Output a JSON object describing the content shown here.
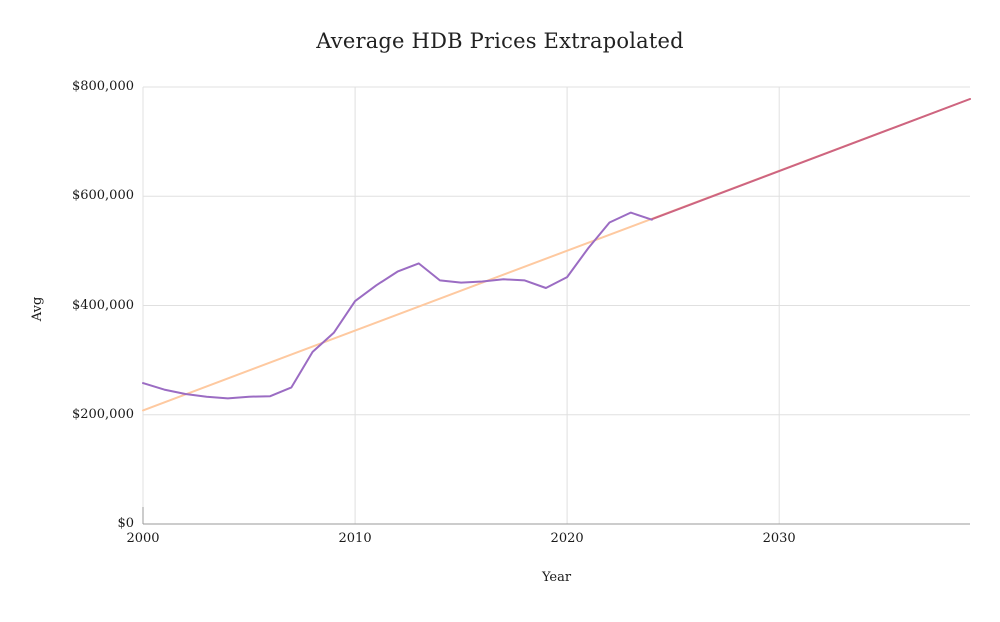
{
  "chart_data": {
    "type": "line",
    "title": "Average HDB Prices Extrapolated",
    "xlabel": "Year",
    "ylabel": "Avg",
    "xlim": [
      2000,
      2039
    ],
    "ylim": [
      0,
      800000
    ],
    "grid": true,
    "legend": "none",
    "style": {
      "grid_color": "#e0e0e0",
      "axis_color": "#999999",
      "background": "#ffffff",
      "actual_color": "#9b6cc3",
      "trend_color": "#fec9a0",
      "extrapolated_color": "#cd6482"
    },
    "x_ticks": [
      {
        "value": 2000,
        "label": "2000"
      },
      {
        "value": 2010,
        "label": "2010"
      },
      {
        "value": 2020,
        "label": "2020"
      },
      {
        "value": 2030,
        "label": "2030"
      }
    ],
    "y_ticks": [
      {
        "value": 0,
        "label": "$0"
      },
      {
        "value": 200000,
        "label": "$200,000"
      },
      {
        "value": 400000,
        "label": "$400,000"
      },
      {
        "value": 600000,
        "label": "$600,000"
      },
      {
        "value": 800000,
        "label": "$800,000"
      }
    ],
    "series": [
      {
        "name": "trend",
        "color": "#fec9a0",
        "width": 2,
        "x": [
          2000,
          2039
        ],
        "values": [
          208000,
          778000
        ]
      },
      {
        "name": "extrapolated",
        "color": "#cd6482",
        "width": 2,
        "x": [
          2024,
          2039
        ],
        "values": [
          558000,
          778000
        ]
      },
      {
        "name": "actual",
        "color": "#9b6cc3",
        "width": 2,
        "x": [
          2000,
          2001,
          2002,
          2003,
          2004,
          2005,
          2006,
          2007,
          2008,
          2009,
          2010,
          2011,
          2012,
          2013,
          2014,
          2015,
          2016,
          2017,
          2018,
          2019,
          2020,
          2021,
          2022,
          2023,
          2024
        ],
        "values": [
          258000,
          246000,
          238000,
          233000,
          230000,
          233000,
          234000,
          250000,
          315000,
          350000,
          408000,
          437000,
          462000,
          477000,
          446000,
          442000,
          444000,
          448000,
          446000,
          432000,
          452000,
          505000,
          552000,
          570000,
          557000
        ]
      }
    ]
  }
}
